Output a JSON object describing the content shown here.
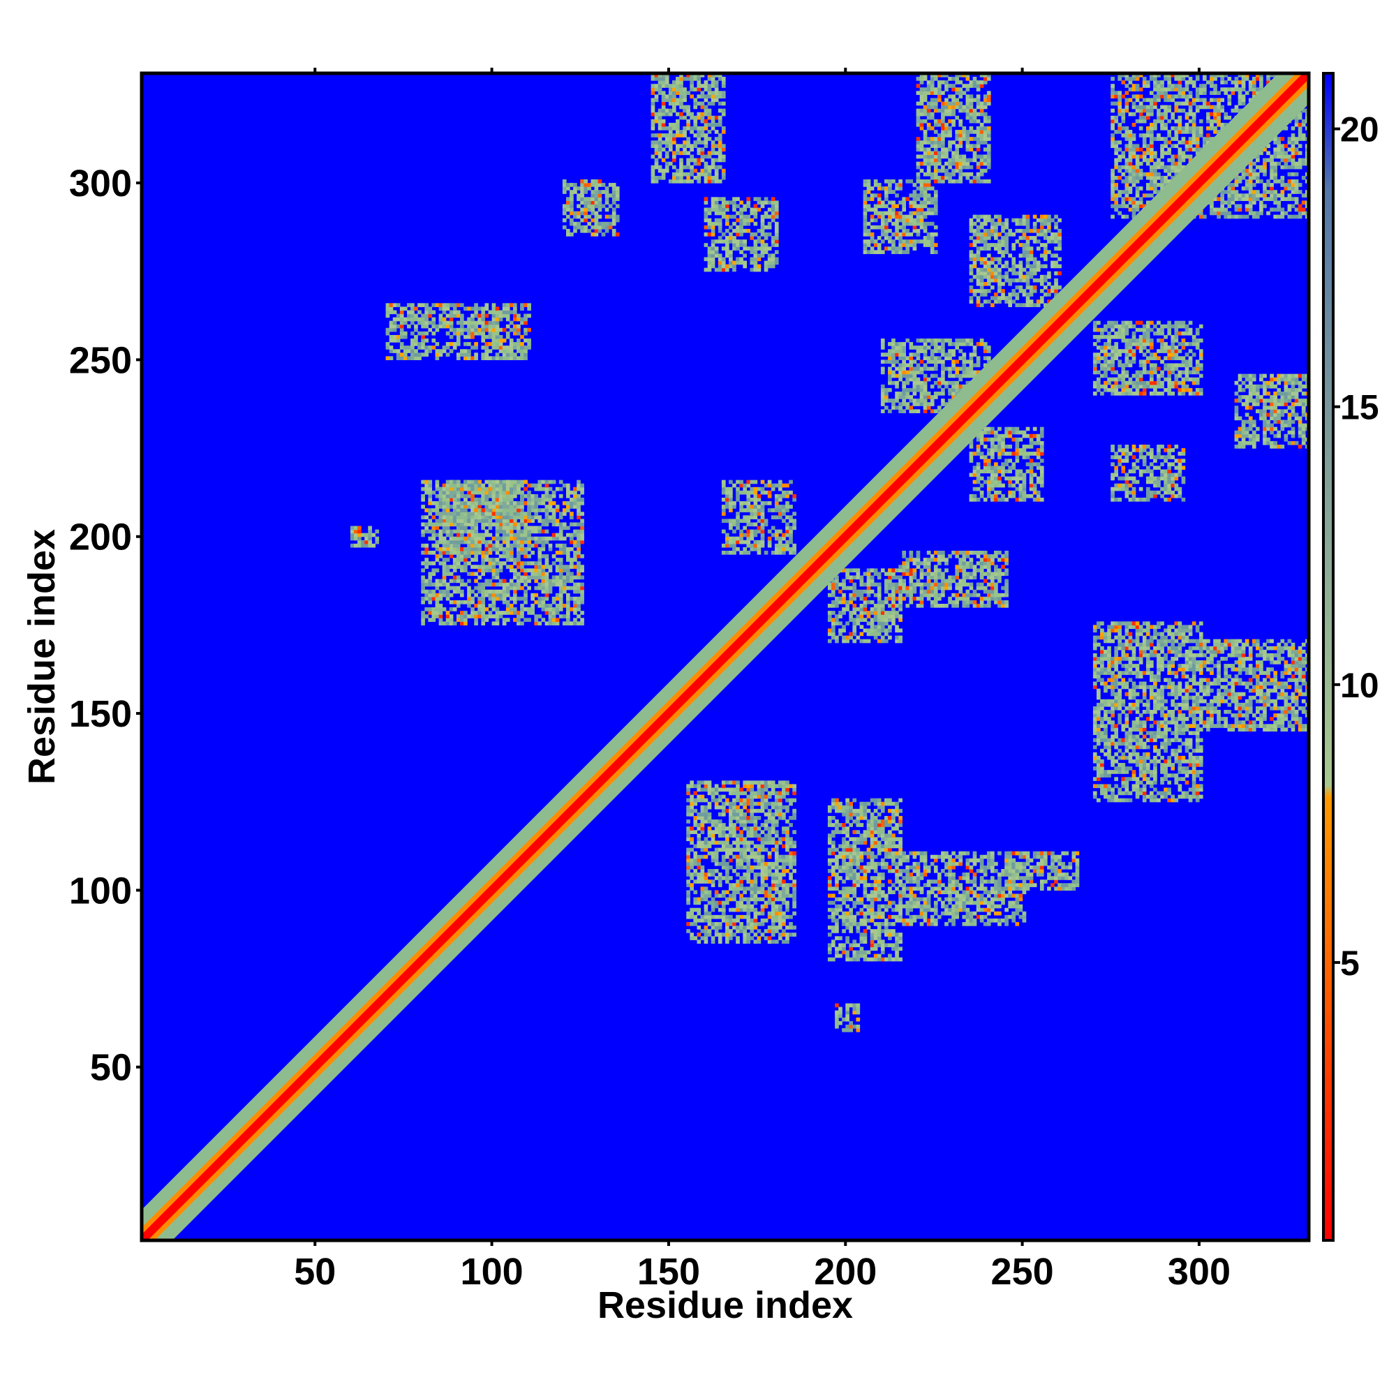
{
  "chart_data": {
    "type": "heatmap",
    "title": "",
    "xlabel": "Residue index",
    "ylabel": "Residue index",
    "xlim": [
      1,
      331
    ],
    "ylim": [
      1,
      331
    ],
    "x_ticks": [
      50,
      100,
      150,
      200,
      250,
      300
    ],
    "y_ticks": [
      50,
      100,
      150,
      200,
      250,
      300
    ],
    "colorbar": {
      "ticks": [
        5,
        10,
        15,
        20
      ],
      "range": [
        0,
        21
      ],
      "colors": [
        "#ff0000",
        "#ff8c00",
        "#8fbc8f",
        "#5f7a9a",
        "#0000ff"
      ]
    },
    "background_color": "#0000ff",
    "diagonal_contacts": {
      "from": 1,
      "to": 331
    },
    "off_diagonal_contacts": [
      {
        "x": [
          70,
          110
        ],
        "y": [
          250,
          265
        ]
      },
      {
        "x": [
          120,
          135
        ],
        "y": [
          285,
          300
        ]
      },
      {
        "x": [
          145,
          165
        ],
        "y": [
          300,
          330
        ]
      },
      {
        "x": [
          160,
          180
        ],
        "y": [
          275,
          295
        ]
      },
      {
        "x": [
          80,
          125
        ],
        "y": [
          175,
          215
        ]
      },
      {
        "x": [
          85,
          110
        ],
        "y": [
          195,
          215
        ]
      },
      {
        "x": [
          165,
          185
        ],
        "y": [
          195,
          215
        ]
      },
      {
        "x": [
          195,
          215
        ],
        "y": [
          170,
          190
        ]
      },
      {
        "x": [
          215,
          245
        ],
        "y": [
          180,
          195
        ]
      },
      {
        "x": [
          155,
          185
        ],
        "y": [
          85,
          130
        ]
      },
      {
        "x": [
          195,
          215
        ],
        "y": [
          80,
          125
        ]
      },
      {
        "x": [
          215,
          250
        ],
        "y": [
          90,
          110
        ]
      },
      {
        "x": [
          245,
          265
        ],
        "y": [
          100,
          110
        ]
      },
      {
        "x": [
          270,
          300
        ],
        "y": [
          125,
          175
        ]
      },
      {
        "x": [
          300,
          330
        ],
        "y": [
          145,
          170
        ]
      },
      {
        "x": [
          220,
          240
        ],
        "y": [
          300,
          330
        ]
      },
      {
        "x": [
          205,
          225
        ],
        "y": [
          280,
          300
        ]
      },
      {
        "x": [
          235,
          260
        ],
        "y": [
          265,
          290
        ]
      },
      {
        "x": [
          210,
          240
        ],
        "y": [
          235,
          255
        ]
      },
      {
        "x": [
          235,
          255
        ],
        "y": [
          210,
          230
        ]
      },
      {
        "x": [
          275,
          295
        ],
        "y": [
          210,
          225
        ]
      },
      {
        "x": [
          270,
          300
        ],
        "y": [
          240,
          260
        ]
      },
      {
        "x": [
          310,
          330
        ],
        "y": [
          225,
          245
        ]
      },
      {
        "x": [
          275,
          330
        ],
        "y": [
          290,
          330
        ]
      },
      {
        "x": [
          60,
          67
        ],
        "y": [
          197,
          202
        ]
      },
      {
        "x": [
          197,
          203
        ],
        "y": [
          60,
          67
        ]
      }
    ]
  }
}
